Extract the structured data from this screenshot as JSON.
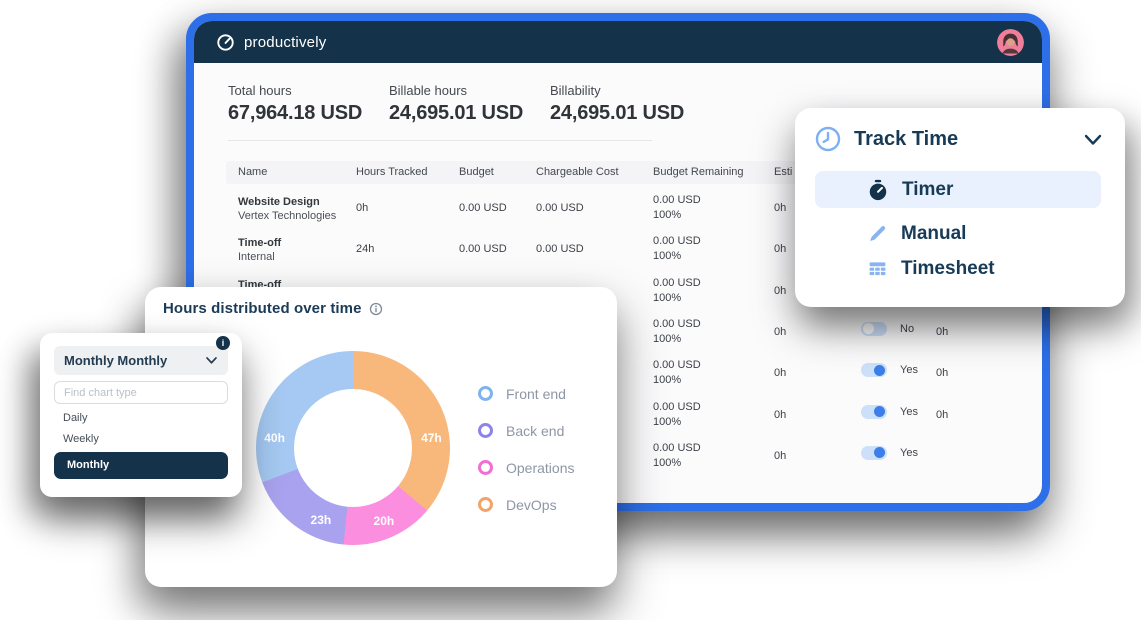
{
  "brand": {
    "name": "productively"
  },
  "stats": [
    {
      "label": "Total hours",
      "value": "67,964.18 USD"
    },
    {
      "label": "Billable hours",
      "value": "24,695.01 USD"
    },
    {
      "label": "Billability",
      "value": "24,695.01 USD"
    }
  ],
  "table": {
    "columns": [
      "Name",
      "Hours Tracked",
      "Budget",
      "Chargeable Cost",
      "Budget Remaining",
      "Esti"
    ],
    "rows": [
      {
        "name": "Website Design",
        "subname": "Vertex Technologies",
        "hours": "0h",
        "budget": "0.00 USD",
        "chargeable": "0.00 USD",
        "remaining": "0.00 USD",
        "remaining_pct": "100%",
        "estimated": "0h",
        "toggle": "",
        "billable": "",
        "extra": ""
      },
      {
        "name": "Time-off",
        "subname": "Internal",
        "hours": "24h",
        "budget": "0.00 USD",
        "chargeable": "0.00 USD",
        "remaining": "0.00 USD",
        "remaining_pct": "100%",
        "estimated": "0h",
        "toggle": "",
        "billable": "",
        "extra": ""
      },
      {
        "name": "Time-off",
        "subname": "",
        "hours": "",
        "budget": "",
        "chargeable": "",
        "remaining": "0.00 USD",
        "remaining_pct": "100%",
        "estimated": "0h",
        "toggle": "",
        "billable": "",
        "extra": ""
      },
      {
        "name": "",
        "subname": "",
        "hours": "",
        "budget": "",
        "chargeable": "",
        "remaining": "0.00 USD",
        "remaining_pct": "100%",
        "estimated": "0h",
        "toggle": "off",
        "billable": "No",
        "extra": "0h"
      },
      {
        "name": "",
        "subname": "",
        "hours": "",
        "budget": "",
        "chargeable": "",
        "remaining": "0.00 USD",
        "remaining_pct": "100%",
        "estimated": "0h",
        "toggle": "on",
        "billable": "Yes",
        "extra": "0h"
      },
      {
        "name": "",
        "subname": "",
        "hours": "",
        "budget": "",
        "chargeable": "",
        "remaining": "0.00 USD",
        "remaining_pct": "100%",
        "estimated": "0h",
        "toggle": "on",
        "billable": "Yes",
        "extra": "0h"
      },
      {
        "name": "",
        "subname": "",
        "hours": "",
        "budget": "",
        "chargeable": "",
        "remaining": "0.00 USD",
        "remaining_pct": "100%",
        "estimated": "0h",
        "toggle": "on",
        "billable": "Yes",
        "extra": ""
      }
    ]
  },
  "track_time": {
    "title": "Track Time",
    "items": [
      {
        "label": "Timer",
        "icon": "stopwatch-icon",
        "active": true
      },
      {
        "label": "Manual",
        "icon": "pencil-icon",
        "active": false
      },
      {
        "label": "Timesheet",
        "icon": "timesheet-grid-icon",
        "active": false
      }
    ]
  },
  "chart_card": {
    "title": "Hours distributed over time"
  },
  "chart_data": {
    "type": "pie",
    "subtype": "donut",
    "title": "Hours distributed over time",
    "unit": "h",
    "total": 130,
    "segments": [
      {
        "label": "Front end",
        "value": 40,
        "display": "40h",
        "color": "#a5c9f2",
        "ring_color": "#7fb3ef"
      },
      {
        "label": "Back end",
        "value": 23,
        "display": "23h",
        "color": "#a9a2ee",
        "ring_color": "#8d83e9"
      },
      {
        "label": "Operations",
        "value": 20,
        "display": "20h",
        "color": "#fb8ede",
        "ring_color": "#f16fd4"
      },
      {
        "label": "DevOps",
        "value": 47,
        "display": "47h",
        "color": "#f8b87c",
        "ring_color": "#f4a368"
      }
    ],
    "draw_order": [
      "DevOps",
      "Operations",
      "Back end",
      "Front end"
    ],
    "start": "top",
    "direction": "clockwise",
    "legend_position": "right"
  },
  "dropdown": {
    "selected": "Monthly Monthly",
    "badge": "i",
    "search_placeholder": "Find chart type",
    "options": [
      "Daily",
      "Weekly"
    ],
    "active_option": "Monthly"
  },
  "colors": {
    "window_border": "#2d6fe8",
    "navy": "#14324a",
    "accent_light_blue": "#7fb0f3",
    "toggle_on": "#3d7ee8"
  }
}
